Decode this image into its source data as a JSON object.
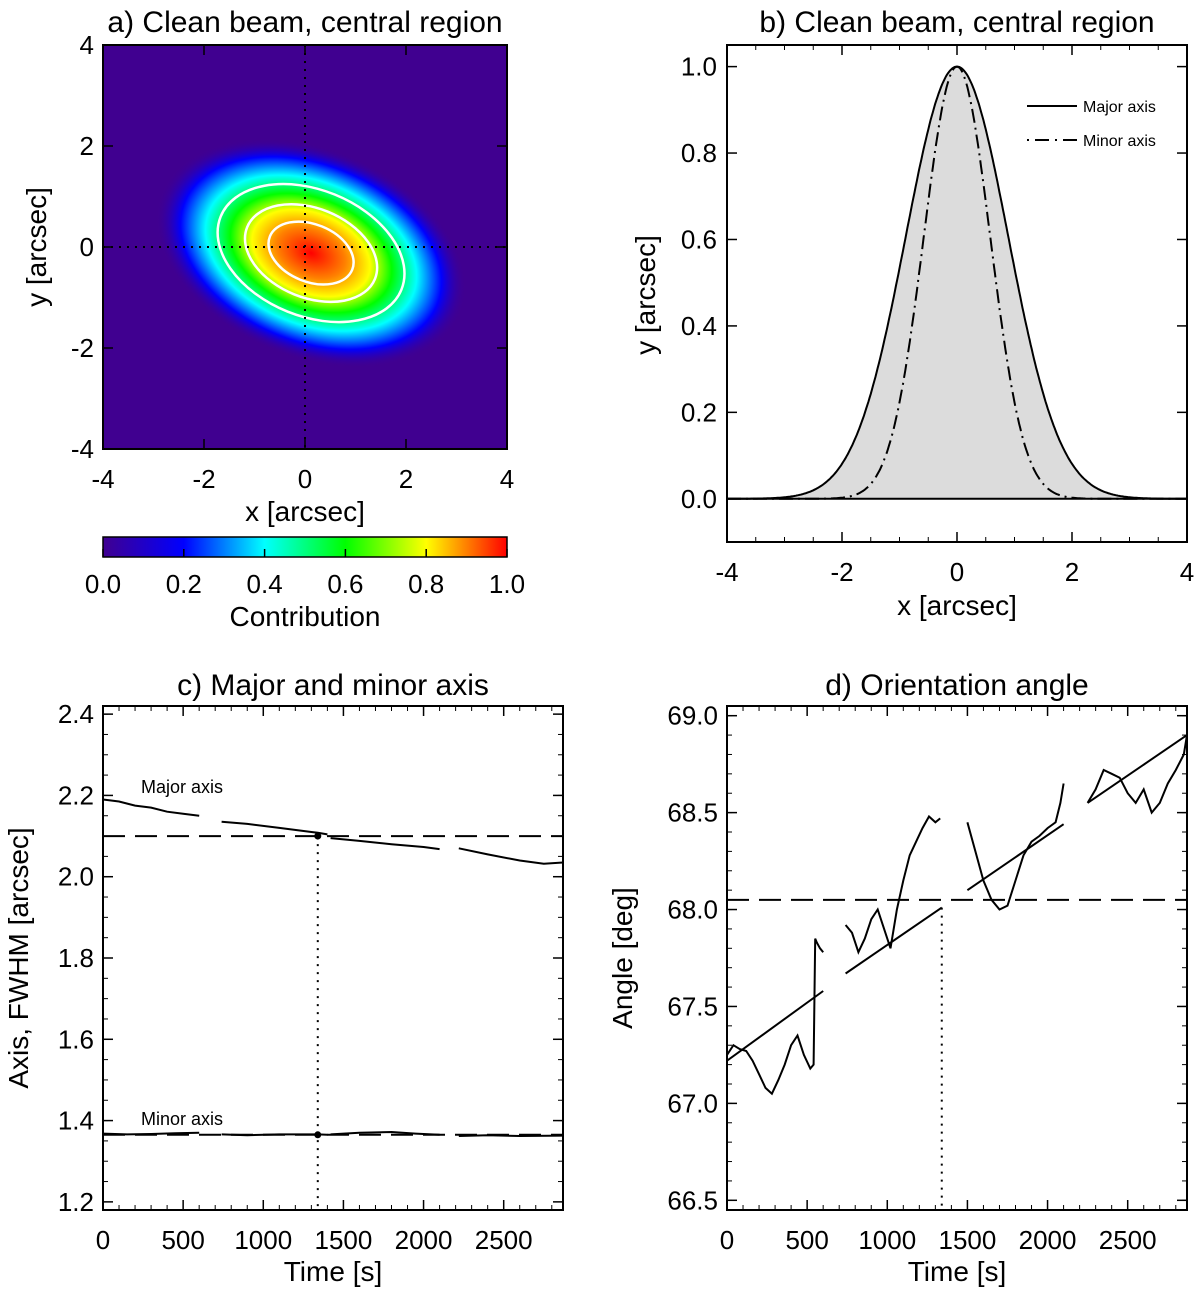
{
  "chart_data": [
    {
      "id": "a",
      "type": "heatmap",
      "title": "a) Clean beam, central region",
      "xlabel": "x [arcsec]",
      "ylabel": "y [arcsec]",
      "xlim": [
        -4,
        4
      ],
      "ylim": [
        -4,
        4
      ],
      "xticks": [
        "-4",
        "-2",
        "0",
        "2",
        "4"
      ],
      "yticks": [
        "-4",
        "-2",
        "0",
        "2",
        "4"
      ],
      "beam": {
        "fwhm_major": 2.1,
        "fwhm_minor": 1.36,
        "angle_deg": 68.05
      },
      "contour_levels": [
        0.25,
        0.5,
        0.75
      ],
      "crosshair": [
        0,
        0
      ],
      "colorbar": {
        "label": "Contribution",
        "ticks": [
          "0.0",
          "0.2",
          "0.4",
          "0.6",
          "0.8",
          "1.0"
        ],
        "range": [
          0,
          1
        ],
        "colors": [
          "#400090",
          "#0000ff",
          "#00ffff",
          "#00ff00",
          "#ffff00",
          "#ff0000"
        ]
      }
    },
    {
      "id": "b",
      "type": "line",
      "title": "b) Clean beam, central region",
      "xlabel": "x [arcsec]",
      "ylabel": "y [arcsec]",
      "xlim": [
        -4,
        4
      ],
      "ylim": [
        -0.1,
        1.05
      ],
      "xticks": [
        "-4",
        "-2",
        "0",
        "2",
        "4"
      ],
      "yticks": [
        "0.0",
        "0.2",
        "0.4",
        "0.6",
        "0.8",
        "1.0"
      ],
      "fill_color": "#dcdcdc",
      "series": [
        {
          "name": "Major axis",
          "style": "solid",
          "fwhm": 2.1
        },
        {
          "name": "Minor axis",
          "style": "dash-dot",
          "fwhm": 1.36
        }
      ],
      "legend_position": "top-right"
    },
    {
      "id": "c",
      "type": "line",
      "title": "c) Major and minor axis",
      "xlabel": "Time [s]",
      "ylabel": "Axis, FWHM [arcsec]",
      "xlim": [
        0,
        2870
      ],
      "ylim": [
        1.18,
        2.42
      ],
      "xticks": [
        "0",
        "500",
        "1000",
        "1500",
        "2000",
        "2500"
      ],
      "yticks": [
        "1.2",
        "1.4",
        "1.6",
        "1.8",
        "2.0",
        "2.2",
        "2.4"
      ],
      "reference_time": 1340,
      "series": [
        {
          "name": "Major axis",
          "mean": 2.1,
          "segments": [
            {
              "x": [
                0,
                100,
                200,
                300,
                400,
                500,
                600
              ],
              "y": [
                2.19,
                2.185,
                2.175,
                2.17,
                2.16,
                2.155,
                2.15
              ]
            },
            {
              "x": [
                740,
                900,
                1100,
                1300,
                1340,
                1400
              ],
              "y": [
                2.135,
                2.13,
                2.12,
                2.11,
                2.108,
                2.104
              ]
            },
            {
              "x": [
                1420,
                1600,
                1800,
                2000,
                2100
              ],
              "y": [
                2.095,
                2.088,
                2.08,
                2.073,
                2.068
              ]
            },
            {
              "x": [
                2220,
                2400,
                2600,
                2750,
                2870
              ],
              "y": [
                2.07,
                2.055,
                2.04,
                2.032,
                2.035
              ]
            }
          ]
        },
        {
          "name": "Minor axis",
          "mean": 1.365,
          "segments": [
            {
              "x": [
                0,
                150,
                300,
                450,
                600
              ],
              "y": [
                1.368,
                1.366,
                1.367,
                1.369,
                1.37
              ]
            },
            {
              "x": [
                740,
                900,
                1100,
                1340,
                1400
              ],
              "y": [
                1.366,
                1.364,
                1.366,
                1.366,
                1.365
              ]
            },
            {
              "x": [
                1420,
                1600,
                1800,
                1950,
                2100
              ],
              "y": [
                1.366,
                1.37,
                1.372,
                1.368,
                1.365
              ]
            },
            {
              "x": [
                2220,
                2400,
                2600,
                2870
              ],
              "y": [
                1.362,
                1.364,
                1.362,
                1.363
              ]
            }
          ]
        }
      ]
    },
    {
      "id": "d",
      "type": "line",
      "title": "d) Orientation angle",
      "xlabel": "Time [s]",
      "ylabel": "Angle [deg]",
      "xlim": [
        0,
        2870
      ],
      "ylim": [
        66.45,
        69.05
      ],
      "xticks": [
        "0",
        "500",
        "1000",
        "1500",
        "2000",
        "2500"
      ],
      "yticks": [
        "66.5",
        "67.0",
        "67.5",
        "68.0",
        "68.5",
        "69.0"
      ],
      "mean": 68.05,
      "reference_time": 1340,
      "data_segments": [
        {
          "x": [
            0,
            40,
            80,
            120,
            160,
            200,
            240,
            280,
            320,
            360,
            400,
            440,
            480,
            520,
            540,
            550,
            560,
            580,
            600
          ],
          "y": [
            67.25,
            67.3,
            67.28,
            67.27,
            67.22,
            67.15,
            67.08,
            67.05,
            67.12,
            67.2,
            67.3,
            67.35,
            67.25,
            67.18,
            67.2,
            67.85,
            67.83,
            67.8,
            67.78
          ]
        },
        {
          "x": [
            740,
            780,
            820,
            860,
            900,
            940,
            980,
            1020,
            1060,
            1100,
            1140,
            1180,
            1220,
            1260,
            1300,
            1330
          ],
          "y": [
            67.92,
            67.88,
            67.78,
            67.85,
            67.95,
            68.0,
            67.9,
            67.8,
            68.0,
            68.15,
            68.28,
            68.35,
            68.42,
            68.48,
            68.45,
            68.47
          ]
        },
        {
          "x": [
            1500,
            1550,
            1600,
            1650,
            1700,
            1750,
            1800,
            1850,
            1900,
            1950,
            2000,
            2050,
            2080,
            2100
          ],
          "y": [
            68.45,
            68.3,
            68.15,
            68.05,
            68.0,
            68.02,
            68.15,
            68.28,
            68.35,
            68.38,
            68.42,
            68.45,
            68.55,
            68.65
          ]
        },
        {
          "x": [
            2250,
            2300,
            2350,
            2400,
            2450,
            2500,
            2550,
            2600,
            2650,
            2700,
            2750,
            2800,
            2850,
            2870
          ],
          "y": [
            68.55,
            68.62,
            68.72,
            68.7,
            68.68,
            68.6,
            68.55,
            68.62,
            68.5,
            68.55,
            68.65,
            68.72,
            68.8,
            68.9
          ]
        }
      ],
      "fit_segments": [
        {
          "x": [
            0,
            600
          ],
          "y": [
            67.22,
            67.58
          ]
        },
        {
          "x": [
            740,
            1340
          ],
          "y": [
            67.67,
            68.01
          ]
        },
        {
          "x": [
            1500,
            2100
          ],
          "y": [
            68.1,
            68.44
          ]
        },
        {
          "x": [
            2250,
            2870
          ],
          "y": [
            68.55,
            68.9
          ]
        }
      ]
    }
  ]
}
